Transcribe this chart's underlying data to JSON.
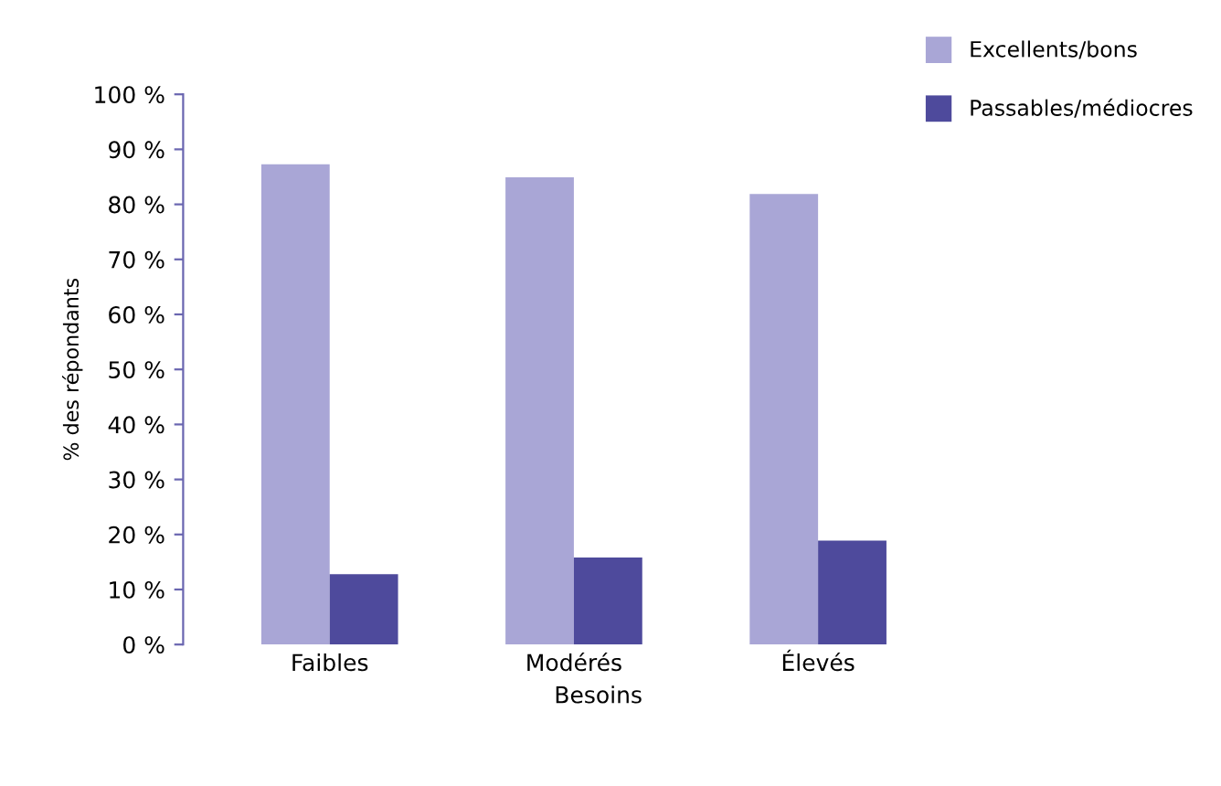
{
  "chart_data": {
    "type": "bar",
    "xlabel": "Besoins",
    "ylabel": "% des répondants",
    "categories": [
      "Faibles",
      "Modérés",
      "Élevés"
    ],
    "series": [
      {
        "name": "Excellents/bons",
        "color": "#a9a6d6",
        "values": [
          87.3,
          84.9,
          81.9
        ]
      },
      {
        "name": "Passables/médiocres",
        "color": "#4e4a9c",
        "values": [
          12.8,
          15.8,
          18.9
        ]
      }
    ],
    "ylim": [
      0,
      100
    ],
    "yticks": [
      {
        "value": 0,
        "label": "0 %"
      },
      {
        "value": 10,
        "label": "10 %"
      },
      {
        "value": 20,
        "label": "20 %"
      },
      {
        "value": 30,
        "label": "30 %"
      },
      {
        "value": 40,
        "label": "40 %"
      },
      {
        "value": 50,
        "label": "50 %"
      },
      {
        "value": 60,
        "label": "60 %"
      },
      {
        "value": 70,
        "label": "70 %"
      },
      {
        "value": 80,
        "label": "80 %"
      },
      {
        "value": 90,
        "label": "90 %"
      },
      {
        "value": 100,
        "label": "100 %"
      }
    ],
    "grid": false,
    "legend": "top right"
  }
}
